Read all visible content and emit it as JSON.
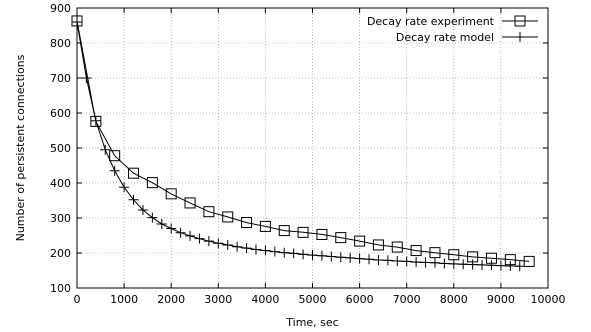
{
  "chart_data": {
    "type": "line",
    "title": "",
    "xlabel": "Time, sec",
    "ylabel": "Number of persistent connections",
    "xlim": [
      0,
      10000
    ],
    "ylim": [
      100,
      900
    ],
    "xticks": [
      0,
      1000,
      2000,
      3000,
      4000,
      5000,
      6000,
      7000,
      8000,
      9000,
      10000
    ],
    "yticks": [
      100,
      200,
      300,
      400,
      500,
      600,
      700,
      800,
      900
    ],
    "grid": "dotted",
    "legend_position": "top-right",
    "series": [
      {
        "name": "Decay rate experiment",
        "marker": "square",
        "x": [
          0,
          400,
          800,
          1200,
          1600,
          2000,
          2400,
          2800,
          3200,
          3600,
          4000,
          4400,
          4800,
          5200,
          5600,
          6000,
          6400,
          6800,
          7200,
          7600,
          8000,
          8400,
          8800,
          9200,
          9600
        ],
        "y": [
          863,
          576,
          478,
          428,
          401,
          369,
          343,
          318,
          303,
          287,
          276,
          264,
          259,
          253,
          244,
          234,
          223,
          217,
          207,
          201,
          195,
          189,
          185,
          181,
          176
        ]
      },
      {
        "name": "Decay rate model",
        "marker": "plus",
        "x": [
          0,
          200,
          400,
          600,
          800,
          1000,
          1200,
          1400,
          1600,
          1800,
          2000,
          2200,
          2400,
          2600,
          2800,
          3000,
          3200,
          3400,
          3600,
          3800,
          4000,
          4200,
          4400,
          4600,
          4800,
          5000,
          5200,
          5400,
          5600,
          5800,
          6000,
          6200,
          6400,
          6600,
          6800,
          7000,
          7200,
          7400,
          7600,
          7800,
          8000,
          8200,
          8400,
          8600,
          8800,
          9000,
          9200,
          9400
        ],
        "y": [
          860,
          700,
          578,
          495,
          435,
          388,
          352,
          323,
          301,
          283,
          270,
          258,
          249,
          241,
          234,
          228,
          223,
          218,
          214,
          210,
          207,
          204,
          201,
          199,
          196,
          194,
          192,
          190,
          188,
          186,
          184,
          182,
          180,
          179,
          177,
          176,
          174,
          173,
          172,
          170,
          169,
          168,
          167,
          166,
          165,
          164,
          163,
          162
        ]
      }
    ]
  }
}
